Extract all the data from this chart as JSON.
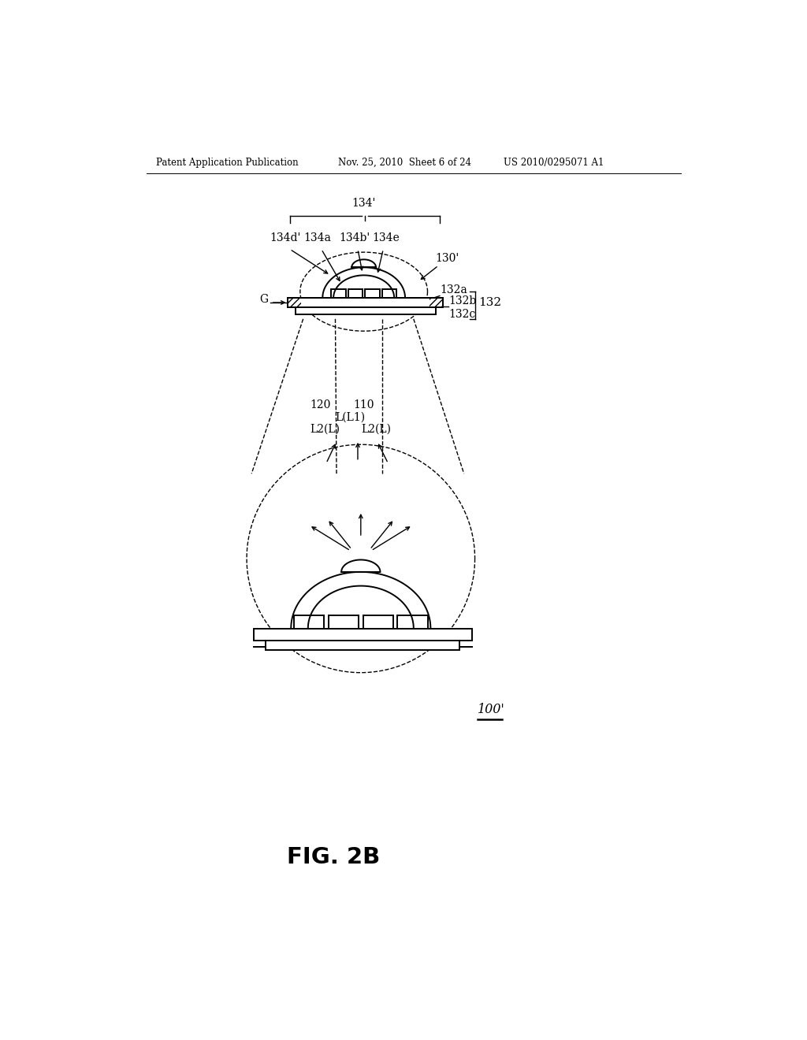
{
  "bg_color": "#ffffff",
  "header_left": "Patent Application Publication",
  "header_mid": "Nov. 25, 2010  Sheet 6 of 24",
  "header_right": "US 2010/0295071 A1",
  "fig_label": "FIG. 2B",
  "ref_100": "100'",
  "page_width": 10.24,
  "page_height": 13.2
}
